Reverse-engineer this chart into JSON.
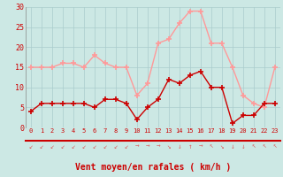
{
  "hours": [
    0,
    1,
    2,
    3,
    4,
    5,
    6,
    7,
    8,
    9,
    10,
    11,
    12,
    13,
    14,
    15,
    16,
    17,
    18,
    19,
    20,
    21,
    22,
    23
  ],
  "wind_avg": [
    4,
    6,
    6,
    6,
    6,
    6,
    5,
    7,
    7,
    6,
    2,
    5,
    7,
    12,
    11,
    13,
    14,
    10,
    10,
    1,
    3,
    3,
    6,
    6
  ],
  "wind_gust": [
    15,
    15,
    15,
    16,
    16,
    15,
    18,
    16,
    15,
    15,
    8,
    11,
    21,
    22,
    26,
    29,
    29,
    21,
    21,
    15,
    8,
    6,
    5,
    15
  ],
  "bg_color": "#cce8e4",
  "grid_color": "#aacccc",
  "line_avg_color": "#cc0000",
  "line_gust_color": "#ff9999",
  "xlabel": "Vent moyen/en rafales ( km/h )",
  "xlabel_color": "#cc0000",
  "tick_color": "#cc0000",
  "arrow_color": "#dd6666",
  "ylim": [
    0,
    30
  ],
  "yticks": [
    0,
    5,
    10,
    15,
    20,
    25,
    30
  ],
  "arrows": [
    "↙",
    "↙",
    "↙",
    "↙",
    "↙",
    "↙",
    "↙",
    "↙",
    "↙",
    "↙",
    "→",
    "→",
    "→",
    "↘",
    "↓",
    "↑",
    "→",
    "↖",
    "↘",
    "↓",
    "↓",
    "↖",
    "↖",
    "↖"
  ]
}
